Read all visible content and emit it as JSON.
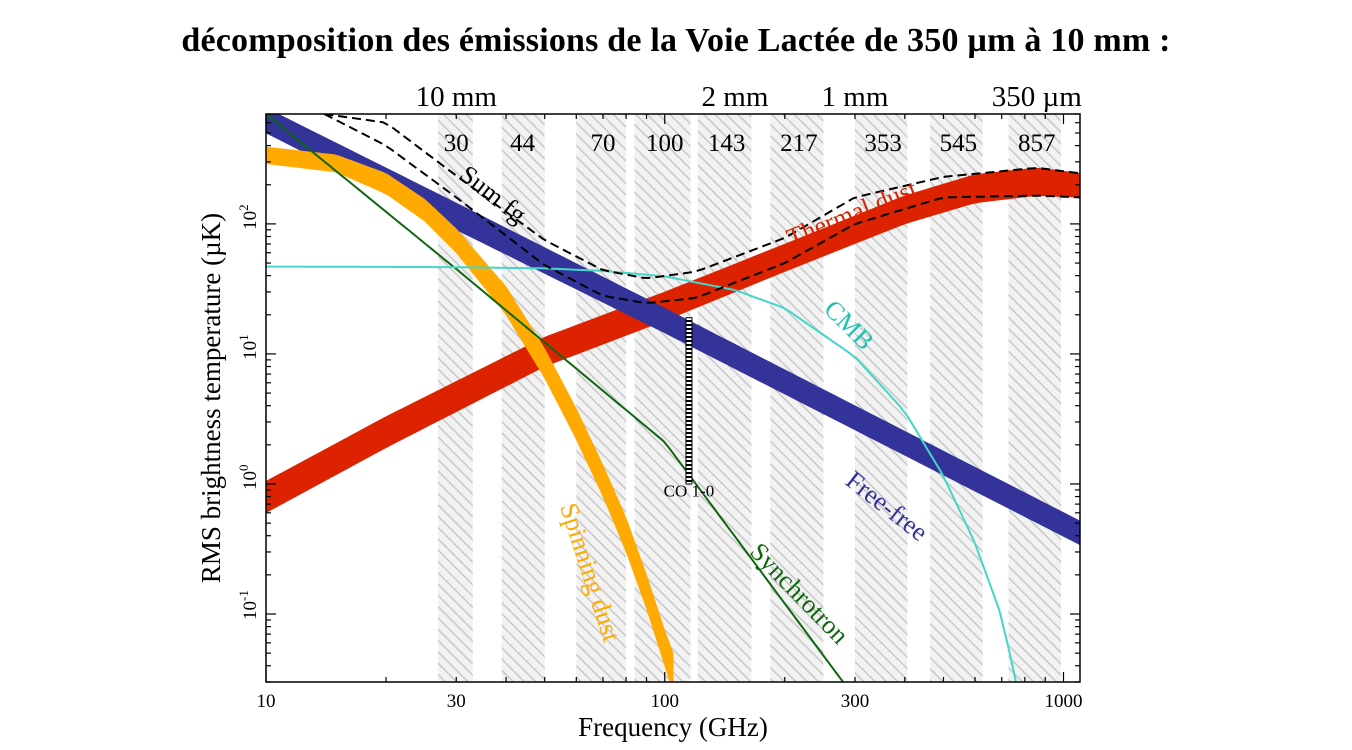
{
  "title": "décomposition des émissions de la Voie Lactée de 350 µm à 10 mm :",
  "chart_data": {
    "type": "line",
    "xlabel": "Frequency (GHz)",
    "ylabel": "RMS brightness temperature (µK)",
    "x_scale": "log",
    "y_scale": "log",
    "xlim": [
      10,
      1100
    ],
    "ylim": [
      0.03,
      700
    ],
    "x_ticks": [
      {
        "value": 10,
        "label": "10"
      },
      {
        "value": 30,
        "label": "30"
      },
      {
        "value": 100,
        "label": "100"
      },
      {
        "value": 300,
        "label": "300"
      },
      {
        "value": 1000,
        "label": "1000"
      }
    ],
    "y_ticks": [
      {
        "value": 0.1,
        "base": "10",
        "exp": "-1"
      },
      {
        "value": 1,
        "base": "10",
        "exp": "0"
      },
      {
        "value": 10,
        "base": "10",
        "exp": "1"
      },
      {
        "value": 100,
        "base": "10",
        "exp": "2"
      }
    ],
    "wavelength_axis": [
      {
        "freq": 30,
        "label": "10 mm"
      },
      {
        "freq": 150,
        "label": "2 mm"
      },
      {
        "freq": 300,
        "label": "1 mm"
      },
      {
        "freq": 857,
        "label": "350 µm"
      }
    ],
    "bands": [
      {
        "label": "30",
        "center": 30,
        "range": [
          27,
          33
        ]
      },
      {
        "label": "44",
        "center": 44,
        "range": [
          39,
          50
        ]
      },
      {
        "label": "70",
        "center": 70,
        "range": [
          60,
          80
        ]
      },
      {
        "label": "100",
        "center": 100,
        "range": [
          84,
          116
        ]
      },
      {
        "label": "143",
        "center": 143,
        "range": [
          121,
          165
        ]
      },
      {
        "label": "217",
        "center": 217,
        "range": [
          184,
          250
        ]
      },
      {
        "label": "353",
        "center": 353,
        "range": [
          300,
          406
        ]
      },
      {
        "label": "545",
        "center": 545,
        "range": [
          463,
          627
        ]
      },
      {
        "label": "857",
        "center": 857,
        "range": [
          728,
          986
        ]
      }
    ],
    "series": [
      {
        "name": "Thermal dust",
        "color": "#dd2200",
        "style": "band",
        "x": [
          10,
          20,
          50,
          100,
          200,
          400,
          600,
          857,
          1100
        ],
        "lower": [
          0.6,
          1.9,
          8,
          18,
          43,
          100,
          145,
          165,
          160
        ],
        "upper": [
          1.05,
          3.3,
          13.5,
          30,
          70,
          165,
          240,
          270,
          245
        ]
      },
      {
        "name": "Free-free",
        "color": "#333399",
        "style": "band",
        "x": [
          10,
          30,
          100,
          300,
          1100
        ],
        "lower": [
          500,
          90,
          14.5,
          2.6,
          0.34
        ],
        "upper": [
          780,
          145,
          22.5,
          4.0,
          0.52
        ]
      },
      {
        "name": "Spinning dust",
        "color": "#ffaa00",
        "style": "band",
        "x": [
          10,
          15,
          20,
          25,
          30,
          40,
          50,
          60,
          70,
          80,
          90,
          100,
          105
        ],
        "lower": [
          290,
          250,
          170,
          105,
          60,
          20,
          6.5,
          2.2,
          0.8,
          0.3,
          0.11,
          0.04,
          0.025
        ],
        "upper": [
          390,
          340,
          245,
          155,
          92,
          33,
          11,
          3.8,
          1.4,
          0.55,
          0.2,
          0.075,
          0.05
        ]
      },
      {
        "name": "Synchrotron",
        "color": "#116611",
        "style": "line",
        "x": [
          10,
          30,
          100,
          280
        ],
        "y": [
          700,
          45,
          2.1,
          0.03
        ]
      },
      {
        "name": "CMB",
        "color": "#44d6c8",
        "style": "line",
        "x": [
          10,
          30,
          50,
          70,
          100,
          150,
          200,
          300,
          400,
          500,
          600,
          700,
          760
        ],
        "y": [
          47,
          46.5,
          45.5,
          43.5,
          39.5,
          31,
          22.5,
          9.5,
          3.6,
          1.15,
          0.35,
          0.095,
          0.03
        ]
      },
      {
        "name": "Sum fg",
        "color": "#000000",
        "style": "dashed",
        "x": [
          14,
          20,
          30,
          50,
          70,
          90,
          120,
          200,
          300,
          500,
          857,
          1100
        ],
        "lower": [
          700,
          400,
          160,
          48,
          28,
          24.5,
          27,
          50,
          100,
          160,
          165,
          160
        ],
        "upper": [
          700,
          600,
          235,
          75,
          44,
          38,
          43,
          78,
          160,
          230,
          270,
          245
        ]
      },
      {
        "name": "CO 1-0",
        "color": "#000000",
        "style": "hatched-bar",
        "x": 115,
        "y_range": [
          1.0,
          19
        ]
      }
    ],
    "annotations": [
      {
        "text": "Sum fg",
        "x": 36,
        "y": 150,
        "rotate": 38,
        "color": "#000000"
      },
      {
        "text": "Thermal dust",
        "x": 300,
        "y": 105,
        "rotate": -22,
        "color": "#dd2200"
      },
      {
        "text": "CMB",
        "x": 280,
        "y": 15,
        "rotate": 45,
        "color": "#20c0b2"
      },
      {
        "text": "Free-free",
        "x": 350,
        "y": 0.6,
        "rotate": 38,
        "color": "#333399"
      },
      {
        "text": "Synchrotron",
        "x": 210,
        "y": 0.13,
        "rotate": 46,
        "color": "#116611"
      },
      {
        "text": "Spinning dust",
        "x": 62,
        "y": 0.2,
        "rotate": 72,
        "color": "#ffaa00"
      },
      {
        "text": "CO 1-0",
        "x": 115,
        "y": 0.8,
        "rotate": 0,
        "color": "#000000"
      }
    ]
  }
}
